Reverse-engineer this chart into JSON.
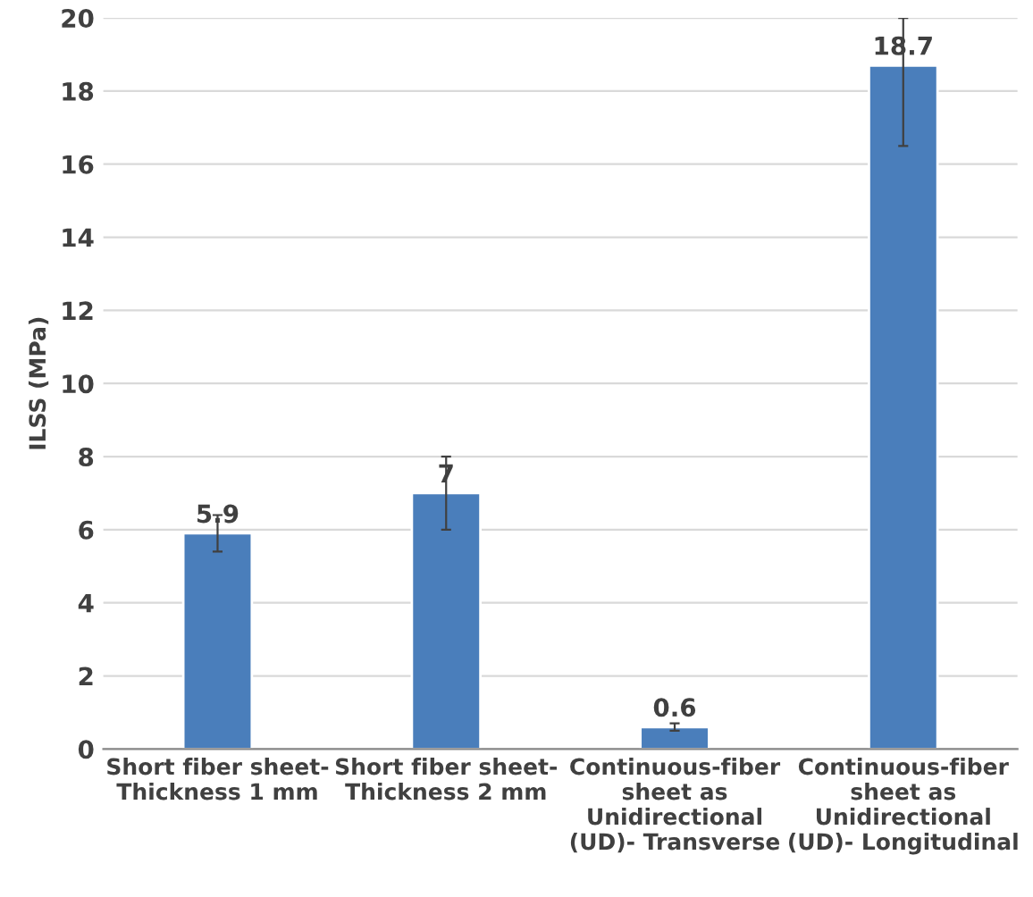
{
  "chart_data": {
    "type": "bar",
    "ylabel": "ILSS (MPa)",
    "categories": [
      "Short fiber sheet-\nThickness 1 mm",
      "Short fiber sheet-\nThickness 2 mm",
      "Continuous-fiber\nsheet as\nUnidirectional\n(UD)- Transverse",
      "Continuous-fiber\nsheet as\nUnidirectional\n(UD)- Longitudinal"
    ],
    "values": [
      5.9,
      7,
      0.6,
      18.7
    ],
    "errors": [
      0.5,
      1,
      0.1,
      [
        16.5,
        20
      ]
    ],
    "color": "#4a7ebb",
    "data_labels": true,
    "ylim": [
      0,
      20
    ],
    "yticks": [
      0,
      2,
      4,
      6,
      8,
      10,
      12,
      14,
      16,
      18,
      20
    ],
    "grid": "y"
  }
}
